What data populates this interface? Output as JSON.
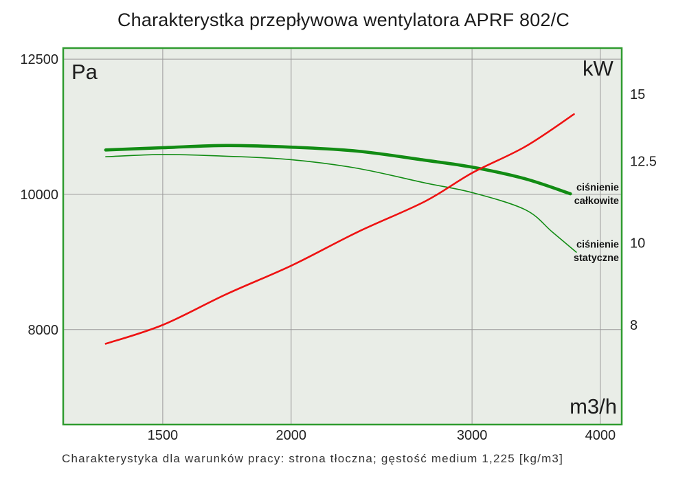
{
  "title": "Charakterystka przepływowa wentylatora APRF 802/C",
  "caption": "Charakterystyka dla warunków pracy: strona tłoczna; gęstość medium 1,225 [kg/m3]",
  "chart_data": {
    "type": "line",
    "title": "Charakterystka przepływowa wentylatora APRF 802/C",
    "grid": true,
    "legend_position": "inline-annotations",
    "x_axis": {
      "label": "m3/h",
      "scale": "log",
      "min": 1200,
      "max": 4196,
      "ticks": [
        1500,
        2000,
        3000,
        4000
      ]
    },
    "y_axis_left": {
      "label": "Pa",
      "scale": "log",
      "min": 6840,
      "max": 12730,
      "ticks": [
        12500,
        10000,
        8000
      ]
    },
    "y_axis_right": {
      "label": "kW",
      "scale": "log",
      "min": 6.1,
      "max": 17.0,
      "ticks": [
        15,
        12.5,
        10,
        8
      ]
    },
    "colors": {
      "plot_bg": "#e9ede7",
      "border": "#2f9b2f",
      "grid": "#9a9a9a",
      "green": "#128c14",
      "red": "#ee1212",
      "text": "#1c1c1c"
    },
    "series": [
      {
        "name": "ciśnienie całkowite",
        "axis": "left",
        "color_key": "green",
        "width": 4.6,
        "x": [
          1320,
          1500,
          1730,
          2000,
          2320,
          2700,
          3000,
          3380,
          3740
        ],
        "y": [
          10760,
          10800,
          10840,
          10810,
          10740,
          10580,
          10460,
          10260,
          10010
        ]
      },
      {
        "name": "ciśnienie statyczne",
        "axis": "left",
        "color_key": "green",
        "width": 1.6,
        "x": [
          1320,
          1500,
          1730,
          2000,
          2320,
          2700,
          3000,
          3380,
          3590,
          3790
        ],
        "y": [
          10640,
          10680,
          10650,
          10590,
          10440,
          10190,
          10030,
          9750,
          9400,
          9090
        ]
      },
      {
        "name": "kW",
        "axis": "right",
        "color_key": "red",
        "width": 2.6,
        "x": [
          1320,
          1500,
          1730,
          2000,
          2320,
          2700,
          3000,
          3380,
          3770
        ],
        "y": [
          7.6,
          8.0,
          8.7,
          9.4,
          10.3,
          11.2,
          12.1,
          13.0,
          14.2
        ]
      }
    ],
    "annotations": [
      {
        "lines": [
          "ciśnienie",
          "całkowite"
        ],
        "x": 4170,
        "pa": 10060,
        "align": "end"
      },
      {
        "lines": [
          "ciśnienie",
          "statyczne"
        ],
        "x": 4170,
        "pa": 9160,
        "align": "end"
      }
    ]
  }
}
